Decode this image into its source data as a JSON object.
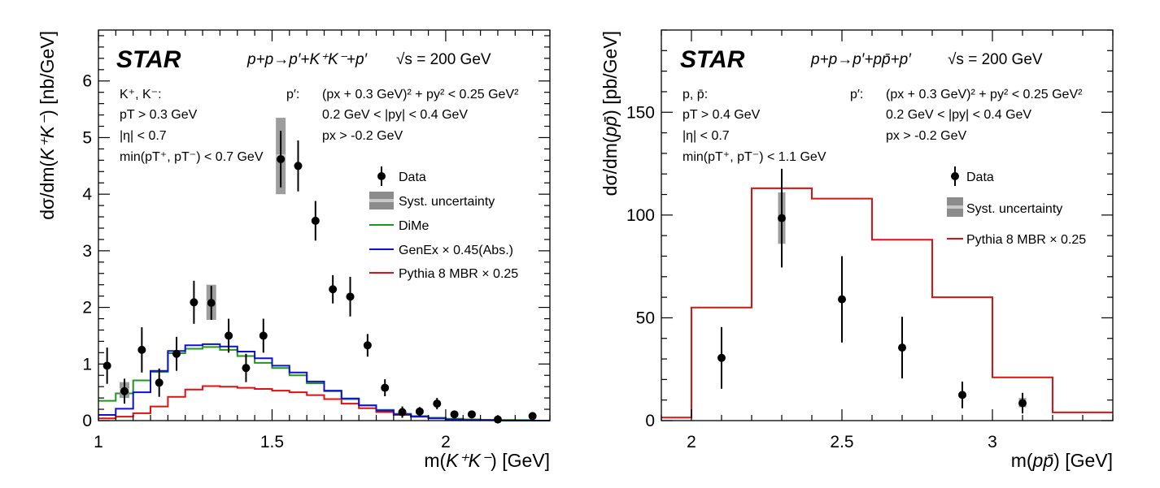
{
  "chart_data": [
    {
      "type": "scatter",
      "label": "STAR",
      "process": "p+p→p′+K⁺K⁻+p′",
      "energy": "√s = 200 GeV",
      "xlabel_main": "m(",
      "xlabel_ital": "K⁺K⁻",
      "xlabel_tail": ") [GeV]",
      "ylabel_main": "dσ/dm(",
      "ylabel_ital": "K⁺K⁻",
      "ylabel_tail": ") [nb/GeV]",
      "xlim": [
        1.0,
        2.3
      ],
      "ylim": [
        0,
        6.9
      ],
      "xticks": [
        1,
        1.5,
        2
      ],
      "xtick_labels": [
        "1",
        "1.5",
        "2"
      ],
      "yticks": [
        0,
        1,
        2,
        3,
        4,
        5,
        6
      ],
      "ytick_labels": [
        "0",
        "1",
        "2",
        "3",
        "4",
        "5",
        "6"
      ],
      "cuts_left": [
        "K⁺, K⁻:",
        "pT > 0.3 GeV",
        "|η| < 0.7",
        "min(pT⁺, pT⁻) < 0.7 GeV"
      ],
      "cuts_right_head": "p′:",
      "cuts_right": [
        "(px + 0.3 GeV)² + py² < 0.25 GeV²",
        "0.2 GeV < |py| < 0.4 GeV",
        "px > -0.2 GeV"
      ],
      "legend": [
        "Data",
        "Syst. uncertainty",
        "DiMe",
        "GenEx × 0.45(Abs.)",
        "Pythia 8 MBR × 0.25"
      ],
      "colors": {
        "data": "#000000",
        "syst": "#8c8c8c",
        "dime": "#1a9a1a",
        "genex": "#1010d0",
        "pythia": "#e01010"
      },
      "data": {
        "x": [
          1.025,
          1.075,
          1.125,
          1.175,
          1.225,
          1.275,
          1.325,
          1.375,
          1.425,
          1.475,
          1.525,
          1.575,
          1.625,
          1.675,
          1.725,
          1.775,
          1.825,
          1.875,
          1.925,
          1.975,
          2.025,
          2.075,
          2.15,
          2.25
        ],
        "y": [
          0.97,
          0.52,
          1.25,
          0.67,
          1.18,
          2.09,
          2.08,
          1.5,
          0.93,
          1.5,
          4.62,
          4.5,
          3.53,
          2.32,
          2.19,
          1.33,
          0.58,
          0.15,
          0.16,
          0.3,
          0.11,
          0.11,
          0.02,
          0.08
        ],
        "err": [
          0.32,
          0.22,
          0.4,
          0.25,
          0.3,
          0.38,
          0.3,
          0.3,
          0.25,
          0.3,
          0.5,
          0.45,
          0.35,
          0.25,
          0.35,
          0.2,
          0.15,
          0.1,
          0.08,
          0.1,
          0.04,
          0.04,
          0.02,
          0.05
        ]
      },
      "syst": [
        {
          "x": 1.075,
          "low": 0.4,
          "high": 0.68
        },
        {
          "x": 1.325,
          "low": 1.78,
          "high": 2.4
        },
        {
          "x": 1.525,
          "low": 4.0,
          "high": 5.35
        }
      ],
      "dime_edges": [
        1.0,
        1.05,
        1.1,
        1.15,
        1.2,
        1.25,
        1.3,
        1.35,
        1.4,
        1.45,
        1.5,
        1.55,
        1.6,
        1.65,
        1.7,
        1.75,
        1.8,
        1.85,
        1.9,
        1.95,
        2.0,
        2.05,
        2.1,
        2.15,
        2.2,
        2.25,
        2.3
      ],
      "dime_values": [
        0.35,
        0.48,
        0.71,
        0.86,
        1.19,
        1.27,
        1.3,
        1.25,
        1.14,
        1.02,
        0.93,
        0.8,
        0.66,
        0.52,
        0.38,
        0.27,
        0.19,
        0.12,
        0.08,
        0.05,
        0.03,
        0.02,
        0.01,
        0.01,
        0.01,
        0.0
      ],
      "genex_edges": [
        1.0,
        1.05,
        1.1,
        1.15,
        1.2,
        1.25,
        1.3,
        1.35,
        1.4,
        1.45,
        1.5,
        1.55,
        1.6,
        1.65,
        1.7,
        1.75,
        1.8,
        1.85,
        1.9,
        1.95,
        2.0,
        2.05,
        2.1,
        2.15,
        2.2,
        2.25,
        2.3
      ],
      "genex_values": [
        0.1,
        0.21,
        0.5,
        0.88,
        1.23,
        1.33,
        1.35,
        1.31,
        1.22,
        1.1,
        0.97,
        0.85,
        0.69,
        0.53,
        0.39,
        0.27,
        0.18,
        0.11,
        0.07,
        0.04,
        0.02,
        0.01,
        0.01,
        0.0,
        0.0,
        0.0
      ],
      "pythia_edges": [
        1.0,
        1.05,
        1.1,
        1.15,
        1.2,
        1.25,
        1.3,
        1.35,
        1.4,
        1.45,
        1.5,
        1.55,
        1.6,
        1.65,
        1.7,
        1.75,
        1.8,
        1.85,
        1.9,
        1.95,
        2.0,
        2.05,
        2.1,
        2.15,
        2.2,
        2.25,
        2.3
      ],
      "pythia_values": [
        0.04,
        0.07,
        0.13,
        0.25,
        0.42,
        0.55,
        0.61,
        0.6,
        0.58,
        0.56,
        0.53,
        0.5,
        0.45,
        0.38,
        0.3,
        0.22,
        0.15,
        0.1,
        0.07,
        0.05,
        0.03,
        0.02,
        0.01,
        0.01,
        0.0,
        0.0
      ]
    },
    {
      "type": "scatter",
      "label": "STAR",
      "process": "p+p→p′+pp̄+p′",
      "energy": "√s = 200 GeV",
      "xlabel_main": "m(",
      "xlabel_ital": "pp̄",
      "xlabel_tail": ") [GeV]",
      "ylabel_main": "dσ/dm(",
      "ylabel_ital": "pp̄",
      "ylabel_tail": ") [pb/GeV]",
      "xlim": [
        1.9,
        3.4
      ],
      "ylim": [
        0,
        190
      ],
      "xticks": [
        2,
        2.5,
        3
      ],
      "xtick_labels": [
        "2",
        "2.5",
        "3"
      ],
      "yticks": [
        0,
        50,
        100,
        150
      ],
      "ytick_labels": [
        "0",
        "50",
        "100",
        "150"
      ],
      "cuts_left": [
        "p, p̄:",
        "pT > 0.4 GeV",
        "|η| < 0.7",
        "min(pT⁺, pT⁻) < 1.1 GeV"
      ],
      "cuts_right_head": "p′:",
      "cuts_right": [
        "(px + 0.3 GeV)² + py² < 0.25 GeV²",
        "0.2 GeV < |py| < 0.4 GeV",
        "px > -0.2 GeV"
      ],
      "legend": [
        "Data",
        "Syst. uncertainty",
        "Pythia 8 MBR × 0.25"
      ],
      "colors": {
        "data": "#000000",
        "syst": "#8c8c8c",
        "pythia": "#e01010"
      },
      "data": {
        "x": [
          2.1,
          2.3,
          2.5,
          2.7,
          2.9,
          3.1
        ],
        "y": [
          30.5,
          98.5,
          59.0,
          35.5,
          12.5,
          8.5
        ],
        "err": [
          15.0,
          24.0,
          21.0,
          15.0,
          6.5,
          5.0
        ]
      },
      "syst": [
        {
          "x": 2.3,
          "low": 86,
          "high": 111
        },
        {
          "x": 3.1,
          "low": 6.5,
          "high": 11
        }
      ],
      "pythia_edges": [
        1.9,
        2.0,
        2.2,
        2.4,
        2.6,
        2.8,
        3.0,
        3.2,
        3.4
      ],
      "pythia_values": [
        1.5,
        55,
        113,
        108,
        88,
        60,
        21,
        4
      ]
    }
  ]
}
